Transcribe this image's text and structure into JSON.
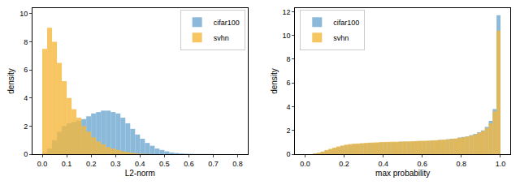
{
  "chart_data": [
    {
      "type": "histogram",
      "xlabel": "L2-norm",
      "ylabel": "density",
      "legend": "upper right",
      "grid": false,
      "bins": [
        0.0,
        0.02,
        0.04,
        0.06,
        0.08,
        0.1,
        0.12,
        0.14,
        0.16,
        0.18,
        0.2,
        0.22,
        0.24,
        0.26,
        0.28,
        0.3,
        0.32,
        0.34,
        0.36,
        0.38,
        0.4,
        0.42,
        0.44,
        0.46,
        0.48,
        0.5,
        0.52,
        0.54,
        0.56,
        0.58,
        0.6,
        0.62,
        0.64,
        0.66,
        0.68,
        0.7,
        0.72,
        0.74,
        0.76,
        0.78,
        0.8
      ],
      "series": [
        {
          "name": "cifar100",
          "color": "#6fa8d0",
          "values": [
            0.1,
            0.4,
            1.0,
            1.6,
            2.0,
            2.2,
            2.3,
            2.4,
            2.5,
            2.7,
            2.9,
            3.0,
            3.1,
            3.1,
            3.0,
            2.9,
            2.6,
            2.2,
            1.8,
            1.4,
            1.1,
            0.8,
            0.6,
            0.4,
            0.3,
            0.2,
            0.12,
            0.08,
            0.05,
            0.03,
            0.02,
            0.01,
            0.01,
            0.01,
            0.01,
            0.0,
            0.0,
            0.0,
            0.0,
            0.0
          ]
        },
        {
          "name": "svhn",
          "color": "#f5b83d",
          "values": [
            7.5,
            9.0,
            8.0,
            6.5,
            5.2,
            4.0,
            3.2,
            2.6,
            2.0,
            1.6,
            1.2,
            0.9,
            0.7,
            0.5,
            0.4,
            0.3,
            0.2,
            0.15,
            0.1,
            0.05,
            0.03,
            0.02,
            0.01,
            0.0,
            0.0,
            0.0,
            0.0,
            0.0,
            0.0,
            0.0,
            0.0,
            0.0,
            0.0,
            0.0,
            0.0,
            0.0,
            0.0,
            0.0,
            0.0,
            0.0
          ]
        }
      ],
      "xlim": [
        -0.04,
        0.84
      ],
      "xticks": [
        {
          "value": 0,
          "label": "0.0"
        },
        {
          "value": 0.1,
          "label": "0.1"
        },
        {
          "value": 0.2,
          "label": "0.2"
        },
        {
          "value": 0.3,
          "label": "0.3"
        },
        {
          "value": 0.4,
          "label": "0.4"
        },
        {
          "value": 0.5,
          "label": "0.5"
        },
        {
          "value": 0.6,
          "label": "0.6"
        },
        {
          "value": 0.7,
          "label": "0.7"
        },
        {
          "value": 0.8,
          "label": "0.8"
        }
      ],
      "ylim": [
        0,
        10.4
      ],
      "yticks": [
        0,
        2,
        4,
        6,
        8,
        10
      ]
    },
    {
      "type": "histogram",
      "xlabel": "max probability",
      "ylabel": "density",
      "legend": "upper left",
      "grid": false,
      "bins": [
        0.0,
        0.02,
        0.04,
        0.06,
        0.08,
        0.1,
        0.12,
        0.14,
        0.16,
        0.18,
        0.2,
        0.22,
        0.24,
        0.26,
        0.28,
        0.3,
        0.32,
        0.34,
        0.36,
        0.38,
        0.4,
        0.42,
        0.44,
        0.46,
        0.48,
        0.5,
        0.52,
        0.54,
        0.56,
        0.58,
        0.6,
        0.62,
        0.64,
        0.66,
        0.68,
        0.7,
        0.72,
        0.74,
        0.76,
        0.78,
        0.8,
        0.82,
        0.84,
        0.86,
        0.88,
        0.9,
        0.92,
        0.94,
        0.96,
        0.98,
        1.0
      ],
      "series": [
        {
          "name": "cifar100",
          "color": "#6fa8d0",
          "values": [
            0.0,
            0.0,
            0.05,
            0.1,
            0.2,
            0.3,
            0.4,
            0.5,
            0.6,
            0.7,
            0.75,
            0.8,
            0.85,
            0.85,
            0.9,
            0.9,
            0.95,
            0.95,
            0.95,
            1.0,
            1.0,
            1.0,
            1.0,
            1.0,
            1.05,
            1.05,
            1.05,
            1.05,
            1.1,
            1.1,
            1.1,
            1.1,
            1.15,
            1.15,
            1.2,
            1.2,
            1.25,
            1.3,
            1.3,
            1.4,
            1.45,
            1.5,
            1.6,
            1.7,
            1.85,
            2.0,
            2.3,
            2.8,
            3.8,
            11.7
          ]
        },
        {
          "name": "svhn",
          "color": "#f5b83d",
          "values": [
            0.0,
            0.0,
            0.06,
            0.12,
            0.22,
            0.35,
            0.45,
            0.55,
            0.65,
            0.72,
            0.8,
            0.85,
            0.88,
            0.9,
            0.92,
            0.95,
            0.97,
            0.98,
            1.0,
            1.02,
            1.03,
            1.04,
            1.05,
            1.05,
            1.06,
            1.07,
            1.08,
            1.1,
            1.1,
            1.12,
            1.13,
            1.15,
            1.15,
            1.18,
            1.2,
            1.22,
            1.25,
            1.28,
            1.32,
            1.38,
            1.42,
            1.48,
            1.55,
            1.65,
            1.8,
            1.95,
            2.2,
            2.6,
            3.6,
            10.4
          ]
        }
      ],
      "xlim": [
        -0.05,
        1.05
      ],
      "xticks": [
        {
          "value": 0,
          "label": "0.0"
        },
        {
          "value": 0.2,
          "label": "0.2"
        },
        {
          "value": 0.4,
          "label": "0.4"
        },
        {
          "value": 0.6,
          "label": "0.6"
        },
        {
          "value": 0.8,
          "label": "0.8"
        },
        {
          "value": 1,
          "label": "1.0"
        }
      ],
      "ylim": [
        0,
        12.3
      ],
      "yticks": [
        0,
        2,
        4,
        6,
        8,
        10,
        12
      ]
    }
  ]
}
